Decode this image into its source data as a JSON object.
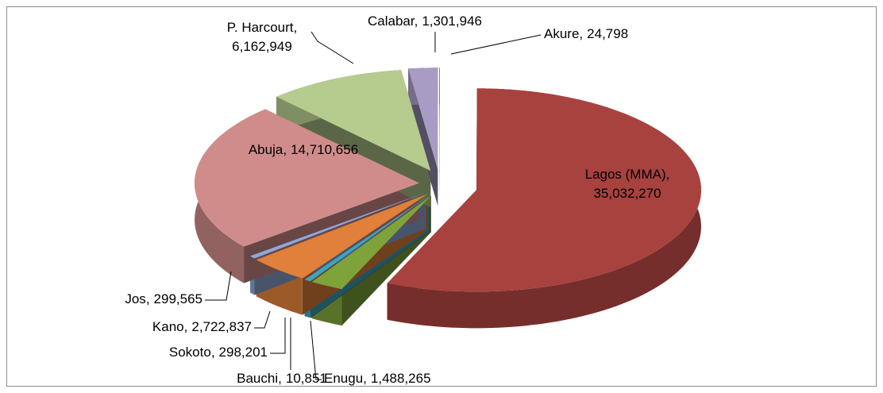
{
  "chart_data": {
    "type": "pie",
    "separator": ",",
    "categories": [
      "Akure",
      "Lagos (MMA)",
      "Enugu",
      "Bauchi",
      "Sokoto",
      "Kano",
      "Jos",
      "Abuja",
      "P. Harcourt",
      "Calabar"
    ],
    "values": [
      24798,
      35032270,
      1488265,
      10851,
      298201,
      2722837,
      299565,
      14710656,
      6162949,
      1301946
    ],
    "value_labels": [
      "24,798",
      "35,032,270",
      "1,488,265",
      "10,851",
      "298,201",
      "2,722,837",
      "299,565",
      "14,710,656",
      "6,162,949",
      "1,301,946"
    ],
    "colors": [
      "#4f81bd",
      "#a8423f",
      "#7ea33a",
      "#5b4a8a",
      "#3aa6c0",
      "#e0803a",
      "#8fa8d8",
      "#d08c8b",
      "#b6cb8e",
      "#a89bc4"
    ]
  }
}
